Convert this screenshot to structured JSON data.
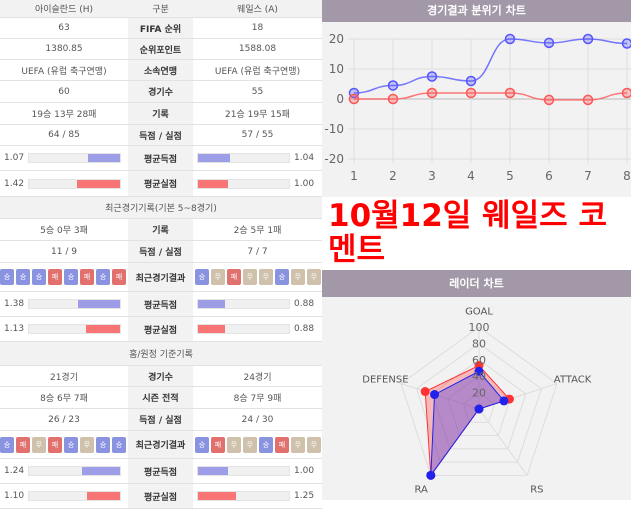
{
  "header": {
    "home": "아이슬란드 (H)",
    "label": "구분",
    "away": "웨일스 (A)"
  },
  "basic": [
    {
      "label": "FIFA 순위",
      "home": "63",
      "away": "18"
    },
    {
      "label": "순위포인트",
      "home": "1380.85",
      "away": "1588.08"
    },
    {
      "label": "소속연맹",
      "home": "UEFA (유럽 축구연맹)",
      "away": "UEFA (유럽 축구연맹)"
    },
    {
      "label": "경기수",
      "home": "60",
      "away": "55"
    },
    {
      "label": "기록",
      "home": "19승 13무 28패",
      "away": "21승 19무 15패"
    },
    {
      "label": "득점 / 실점",
      "home": "64 / 85",
      "away": "57 / 55"
    }
  ],
  "basic_bars": [
    {
      "label": "평균득점",
      "home": 1.07,
      "away": 1.04,
      "home_text": "1.07",
      "away_text": "1.04"
    },
    {
      "label": "평균실점",
      "home": 1.42,
      "away": 1.0,
      "home_text": "1.42",
      "away_text": "1.00"
    }
  ],
  "recent": {
    "title": "최근경기기록(기본 5~8경기)",
    "rows": [
      {
        "label": "기록",
        "home": "5승 0무 3패",
        "away": "2승 5무 1패"
      },
      {
        "label": "득점 / 실점",
        "home": "11 / 9",
        "away": "7 / 7"
      }
    ],
    "results_label": "최근경기결과",
    "home_results": [
      "승",
      "승",
      "승",
      "패",
      "승",
      "패",
      "승",
      "패"
    ],
    "away_results": [
      "승",
      "무",
      "패",
      "무",
      "무",
      "승",
      "무",
      "무"
    ],
    "bars": [
      {
        "label": "평균득점",
        "home": 1.38,
        "away": 0.88,
        "home_text": "1.38",
        "away_text": "0.88"
      },
      {
        "label": "평균실점",
        "home": 1.13,
        "away": 0.88,
        "home_text": "1.13",
        "away_text": "0.88"
      }
    ]
  },
  "homeaway": {
    "title": "홈/원정 기준기록",
    "rows": [
      {
        "label": "경기수",
        "home": "21경기",
        "away": "24경기"
      },
      {
        "label": "시즌 전적",
        "home": "8승 6무 7패",
        "away": "8승 7무 9패"
      },
      {
        "label": "득점 / 실점",
        "home": "26 / 23",
        "away": "24 / 30"
      }
    ],
    "results_label": "최근경기결과",
    "home_results": [
      "승",
      "패",
      "무",
      "패",
      "승",
      "무",
      "승",
      "승"
    ],
    "away_results": [
      "승",
      "패",
      "무",
      "무",
      "승",
      "패",
      "무",
      "무"
    ],
    "bars": [
      {
        "label": "평균득점",
        "home": 1.24,
        "away": 1.0,
        "home_text": "1.24",
        "away_text": "1.00"
      },
      {
        "label": "평균실점",
        "home": 1.1,
        "away": 1.25,
        "home_text": "1.10",
        "away_text": "1.25"
      }
    ]
  },
  "colors": {
    "win": "#8a93e0",
    "draw": "#cfc1ab",
    "loss": "#e0716f",
    "goal_bar": "#9e9ee8",
    "concede_bar": "#f87575",
    "home_series": "#ff5555",
    "away_series": "#5555ff"
  },
  "bar_max": 3,
  "chart_data": [
    {
      "type": "line",
      "title": "경기결과 분위기 차트",
      "x": [
        1,
        2,
        3,
        4,
        5,
        6,
        7,
        8
      ],
      "ylim": [
        -20,
        20
      ],
      "yticks": [
        -20,
        -10,
        0,
        10,
        20
      ],
      "grid": true,
      "series": [
        {
          "values": [
            2,
            4.5,
            7.5,
            6,
            20,
            18.7,
            20,
            18.5
          ],
          "color": "#5555ff"
        },
        {
          "values": [
            0,
            0,
            2,
            2,
            2,
            -0.3,
            -0.3,
            2
          ],
          "color": "#ff5555"
        }
      ]
    },
    {
      "type": "radar",
      "title": "레이더 차트",
      "axes": [
        "GOAL",
        "ATTACK",
        "RS",
        "RA",
        "DEFENSE"
      ],
      "rlim": [
        0,
        100
      ],
      "ticks": [
        20,
        40,
        60,
        80,
        100
      ],
      "series": [
        {
          "values": [
            53,
            39,
            0,
            100,
            69
          ],
          "color": "#ff3333"
        },
        {
          "values": [
            46,
            32,
            0,
            100,
            57
          ],
          "color": "#2222ee"
        }
      ]
    }
  ],
  "overlay": "10월12일 웨일즈 코멘트"
}
